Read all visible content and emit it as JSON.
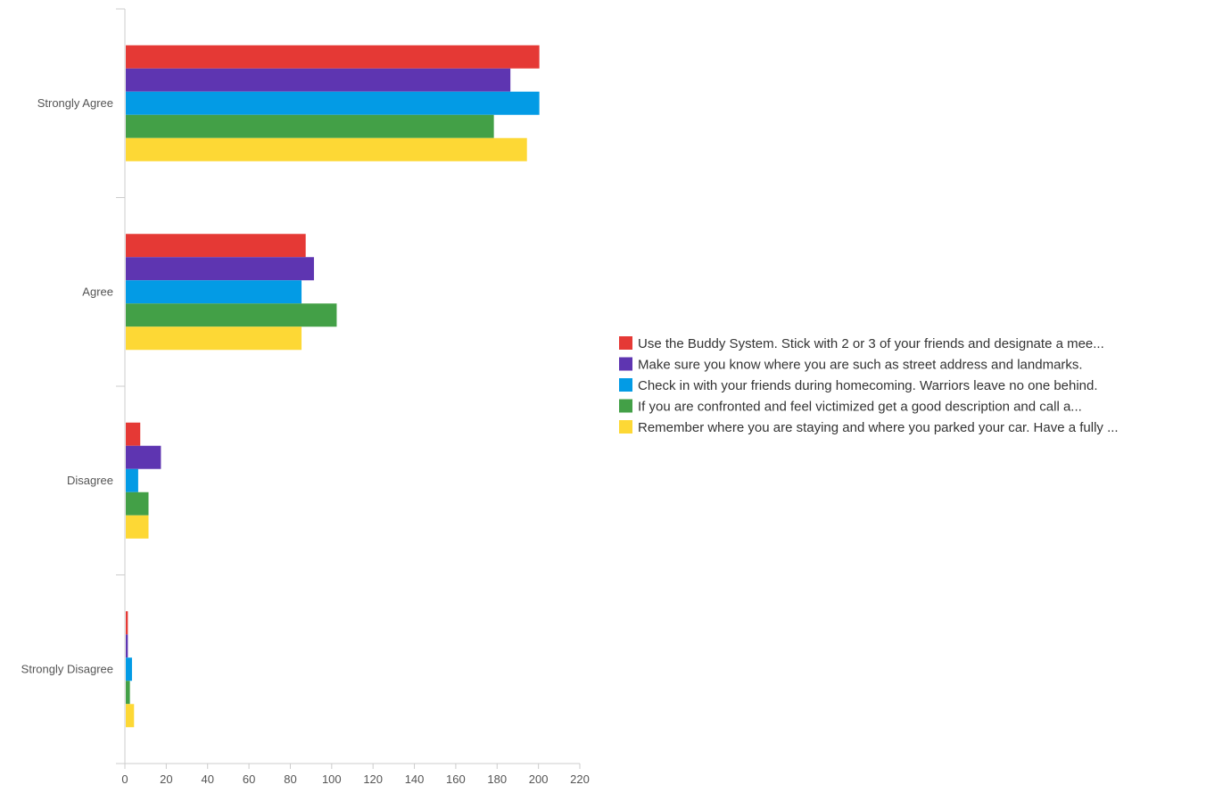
{
  "chart_data": {
    "type": "bar",
    "orientation": "horizontal",
    "categories": [
      "Strongly Agree",
      "Agree",
      "Disagree",
      "Strongly Disagree"
    ],
    "series": [
      {
        "name": "Use the Buddy System. Stick with 2 or 3 of your friends and designate a mee...",
        "color": "#e53935",
        "values": [
          200,
          87,
          7,
          1
        ]
      },
      {
        "name": "Make sure you know where you are such as street address and landmarks.",
        "color": "#5e35b1",
        "values": [
          186,
          91,
          17,
          1
        ]
      },
      {
        "name": "Check in with your friends during homecoming. Warriors leave no one behind.",
        "color": "#039be5",
        "values": [
          200,
          85,
          6,
          3
        ]
      },
      {
        "name": "If you are confronted and feel victimized get a good description and call a...",
        "color": "#43a047",
        "values": [
          178,
          102,
          11,
          2
        ]
      },
      {
        "name": "Remember where you are staying and where you parked your car. Have a fully ...",
        "color": "#fdd835",
        "values": [
          194,
          85,
          11,
          4
        ]
      }
    ],
    "xticks": [
      "0",
      "20",
      "40",
      "60",
      "80",
      "100",
      "120",
      "140",
      "160",
      "180",
      "200",
      "220"
    ],
    "xlim": [
      0,
      220
    ],
    "title": "",
    "xlabel": "",
    "ylabel": "",
    "grid": false,
    "legend_position": "right"
  }
}
